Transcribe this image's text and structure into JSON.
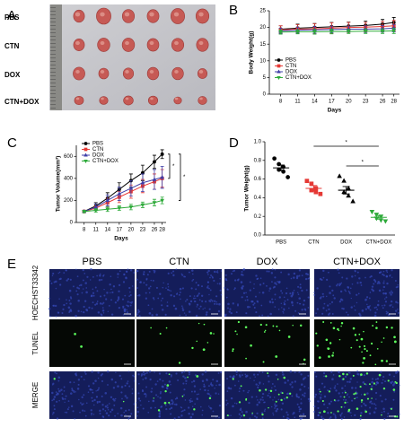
{
  "photo": {
    "label": "A",
    "row_labels": [
      "PBS",
      "CTN",
      "DOX",
      "CTN+DOX"
    ]
  },
  "chart_data": [
    {
      "type": "line",
      "label": "B",
      "y_label": "Body Weight(g)",
      "x_label": "Days",
      "x": [
        8,
        11,
        14,
        17,
        20,
        23,
        26,
        28
      ],
      "xlim": [
        6,
        29
      ],
      "xticks": [
        8,
        11,
        14,
        17,
        20,
        23,
        26,
        28
      ],
      "ylim": [
        0,
        25
      ],
      "yticks": [
        0,
        5,
        10,
        15,
        20,
        25
      ],
      "legend": "lower left",
      "series": [
        {
          "name": "PBS",
          "color": "#000000",
          "marker": "circle",
          "values": [
            19.5,
            19.8,
            20,
            20.2,
            20.4,
            20.6,
            21,
            21.5
          ],
          "errors": [
            1,
            1.2,
            1.2,
            1.3,
            1.2,
            1.3,
            1.4,
            1.5
          ]
        },
        {
          "name": "CTN",
          "color": "#e53935",
          "marker": "square",
          "values": [
            19.3,
            19.5,
            19.6,
            19.8,
            20,
            20.1,
            20.3,
            20.5
          ],
          "errors": [
            1.2,
            1.3,
            1.5,
            1.6,
            1.5,
            1.4,
            1.5,
            1.6
          ]
        },
        {
          "name": "DOX",
          "color": "#3f3fa8",
          "marker": "triangle",
          "values": [
            19,
            19.2,
            19.3,
            19.4,
            19.5,
            19.5,
            19.6,
            19.8
          ],
          "errors": [
            0.8,
            0.9,
            1,
            1,
            0.9,
            1,
            1,
            1.1
          ]
        },
        {
          "name": "CTN+DOX",
          "color": "#2eaa3a",
          "marker": "down",
          "values": [
            18.6,
            18.7,
            18.7,
            18.8,
            18.8,
            18.9,
            18.9,
            19
          ],
          "errors": [
            0.6,
            0.6,
            0.7,
            0.7,
            0.6,
            0.7,
            0.7,
            0.8
          ]
        }
      ]
    },
    {
      "type": "line",
      "label": "C",
      "y_label": "Tumor Volume(mm³)",
      "x_label": "Days",
      "x": [
        8,
        11,
        14,
        17,
        20,
        23,
        26,
        28
      ],
      "xlim": [
        6,
        29
      ],
      "xticks": [
        8,
        11,
        14,
        17,
        20,
        23,
        26,
        28
      ],
      "ylim": [
        0,
        700
      ],
      "yticks": [
        0,
        200,
        400,
        600
      ],
      "legend": "upper left",
      "series": [
        {
          "name": "PBS",
          "color": "#000000",
          "marker": "circle",
          "values": [
            100,
            150,
            220,
            300,
            380,
            450,
            550,
            620
          ],
          "errors": [
            10,
            30,
            50,
            60,
            60,
            70,
            60,
            40
          ]
        },
        {
          "name": "CTN",
          "color": "#e53935",
          "marker": "square",
          "values": [
            100,
            130,
            180,
            230,
            280,
            330,
            370,
            400
          ],
          "errors": [
            10,
            20,
            40,
            50,
            60,
            60,
            70,
            80
          ]
        },
        {
          "name": "DOX",
          "color": "#3f3fa8",
          "marker": "triangle",
          "values": [
            100,
            140,
            200,
            260,
            310,
            360,
            390,
            410
          ],
          "errors": [
            10,
            30,
            50,
            60,
            70,
            80,
            90,
            100
          ]
        },
        {
          "name": "CTN+DOX",
          "color": "#2eaa3a",
          "marker": "down",
          "values": [
            100,
            110,
            120,
            130,
            140,
            160,
            180,
            200
          ],
          "errors": [
            10,
            15,
            20,
            20,
            25,
            25,
            30,
            30
          ]
        }
      ],
      "significance": [
        {
          "label": "*",
          "pair": [
            "PBS",
            "CTN"
          ]
        },
        {
          "label": "*",
          "pair": [
            "PBS",
            "CTN+DOX"
          ]
        }
      ]
    },
    {
      "type": "dot",
      "label": "D",
      "y_label": "Tumor Weight(g)",
      "categories": [
        "PBS",
        "CTN",
        "DOX",
        "CTN+DOX"
      ],
      "colors": [
        "#000000",
        "#e53935",
        "#000000",
        "#2eaa3a"
      ],
      "markers": [
        "circle",
        "square",
        "triangle",
        "down"
      ],
      "points": [
        [
          0.82,
          0.76,
          0.73,
          0.7,
          0.68,
          0.62
        ],
        [
          0.58,
          0.55,
          0.5,
          0.48,
          0.46,
          0.44
        ],
        [
          0.63,
          0.58,
          0.5,
          0.46,
          0.42,
          0.36
        ],
        [
          0.25,
          0.22,
          0.2,
          0.18,
          0.16,
          0.15
        ]
      ],
      "means": [
        0.72,
        0.5,
        0.48,
        0.19
      ],
      "errors": [
        0.03,
        0.03,
        0.04,
        0.02
      ],
      "ylim": [
        0,
        1
      ],
      "yticks": [
        {
          "value": 0,
          "label": "0.0"
        },
        0.2,
        0.4,
        0.6,
        0.8,
        {
          "value": 1,
          "label": "1.0"
        }
      ],
      "significance": [
        {
          "label": "*",
          "pair": [
            "CTN",
            "CTN+DOX"
          ]
        },
        {
          "label": "*",
          "pair": [
            "DOX",
            "CTN+DOX"
          ]
        }
      ]
    }
  ],
  "microscopy": {
    "label": "E",
    "columns": [
      "PBS",
      "CTN",
      "DOX",
      "CTN+DOX"
    ],
    "rows": [
      "HOECHST33342",
      "TUNEL",
      "MERGE"
    ]
  }
}
